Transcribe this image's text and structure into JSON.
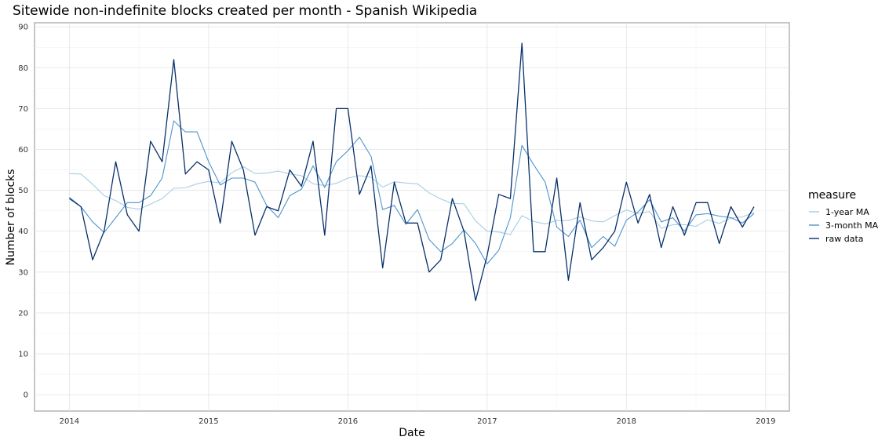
{
  "chart_data": {
    "type": "line",
    "title": "Sitewide non-indefinite blocks created per month - Spanish Wikipedia",
    "xlabel": "Date",
    "ylabel": "Number of blocks",
    "xlim": [
      2013.75,
      2019.17
    ],
    "ylim": [
      -4,
      91
    ],
    "x_ticks": [
      2014,
      2015,
      2016,
      2017,
      2018,
      2019
    ],
    "y_ticks": [
      0,
      10,
      20,
      30,
      40,
      50,
      60,
      70,
      80,
      90
    ],
    "grid": true,
    "legend": {
      "title": "measure",
      "position": "right"
    },
    "x": [
      "2014-01",
      "2014-02",
      "2014-03",
      "2014-04",
      "2014-05",
      "2014-06",
      "2014-07",
      "2014-08",
      "2014-09",
      "2014-10",
      "2014-11",
      "2014-12",
      "2015-01",
      "2015-02",
      "2015-03",
      "2015-04",
      "2015-05",
      "2015-06",
      "2015-07",
      "2015-08",
      "2015-09",
      "2015-10",
      "2015-11",
      "2015-12",
      "2016-01",
      "2016-02",
      "2016-03",
      "2016-04",
      "2016-05",
      "2016-06",
      "2016-07",
      "2016-08",
      "2016-09",
      "2016-10",
      "2016-11",
      "2016-12",
      "2017-01",
      "2017-02",
      "2017-03",
      "2017-04",
      "2017-05",
      "2017-06",
      "2017-07",
      "2017-08",
      "2017-09",
      "2017-10",
      "2017-11",
      "2017-12",
      "2018-01",
      "2018-02",
      "2018-03",
      "2018-04",
      "2018-05",
      "2018-06",
      "2018-07",
      "2018-08",
      "2018-09",
      "2018-10",
      "2018-11",
      "2018-12"
    ],
    "series": [
      {
        "name": "1-year MA",
        "color": "#a6cee3",
        "values": [
          54.1,
          54.0,
          51.5,
          48.7,
          47.5,
          45.8,
          45.4,
          46.6,
          48.0,
          50.5,
          50.6,
          51.6,
          52.2,
          51.8,
          54.3,
          55.8,
          54.1,
          54.2,
          54.7,
          54.0,
          53.6,
          51.6,
          51.2,
          51.7,
          53.0,
          53.6,
          53.2,
          50.8,
          52.1,
          51.8,
          51.6,
          49.4,
          47.9,
          46.8,
          46.7,
          42.5,
          40.0,
          39.8,
          39.2,
          43.8,
          42.4,
          41.8,
          42.6,
          42.6,
          43.5,
          42.5,
          42.3,
          43.8,
          45.2,
          44.3,
          44.8,
          40.7,
          41.6,
          41.6,
          41.2,
          42.8,
          41.9,
          43.2,
          43.5,
          44.6
        ]
      },
      {
        "name": "3-month MA",
        "color": "#4d94cc",
        "values": [
          48.3,
          46.0,
          42.3,
          39.7,
          43.3,
          47.0,
          47.0,
          48.7,
          53.0,
          67.0,
          64.3,
          64.3,
          57.0,
          51.3,
          53.0,
          53.0,
          52.0,
          46.3,
          43.3,
          48.7,
          50.3,
          56.0,
          50.7,
          57.0,
          59.7,
          63.0,
          58.3,
          45.3,
          46.3,
          41.7,
          45.3,
          38.0,
          35.0,
          37.0,
          40.3,
          37.0,
          32.0,
          35.3,
          43.3,
          61.0,
          56.3,
          52.0,
          41.0,
          38.7,
          42.7,
          36.0,
          38.7,
          36.3,
          42.7,
          44.7,
          47.7,
          42.3,
          43.3,
          40.0,
          44.0,
          44.3,
          43.7,
          43.3,
          42.0,
          44.3
        ]
      },
      {
        "name": "raw data",
        "color": "#08306b",
        "values": [
          48,
          46,
          33,
          40,
          57,
          44,
          40,
          62,
          57,
          82,
          54,
          57,
          55,
          42,
          62,
          55,
          39,
          46,
          45,
          55,
          51,
          62,
          39,
          70,
          70,
          49,
          56,
          31,
          52,
          42,
          42,
          30,
          33,
          48,
          40,
          23,
          34,
          49,
          48,
          86,
          35,
          35,
          53,
          28,
          47,
          33,
          36,
          40,
          52,
          42,
          49,
          36,
          46,
          39,
          47,
          47,
          37,
          46,
          41,
          46
        ]
      }
    ]
  }
}
